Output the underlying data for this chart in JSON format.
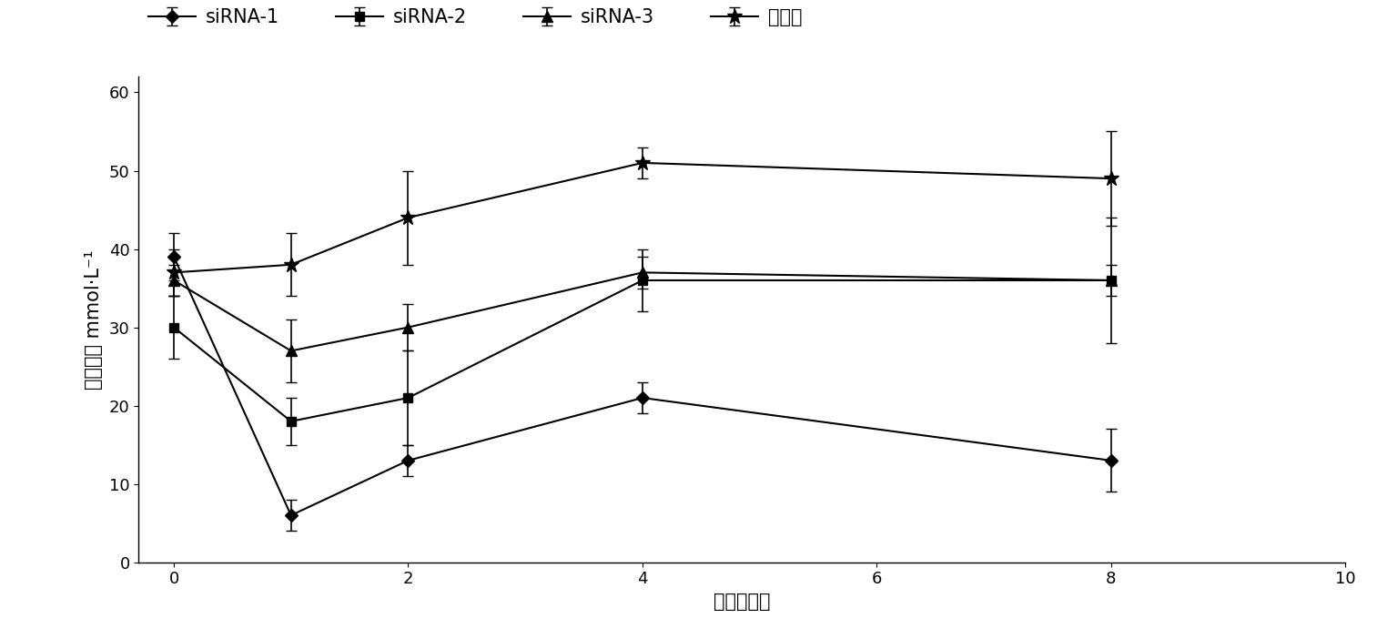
{
  "series": [
    {
      "label": "siRNA-1",
      "marker": "D",
      "x": [
        0,
        1,
        2,
        4,
        8
      ],
      "y": [
        39,
        6,
        13,
        21,
        13
      ],
      "yerr": [
        3,
        2,
        2,
        2,
        4
      ],
      "markersize": 7
    },
    {
      "label": "siRNA-2",
      "marker": "s",
      "x": [
        0,
        1,
        2,
        4,
        8
      ],
      "y": [
        30,
        18,
        21,
        36,
        36
      ],
      "yerr": [
        4,
        3,
        6,
        4,
        8
      ],
      "markersize": 7
    },
    {
      "label": "siRNA-3",
      "marker": "^",
      "x": [
        0,
        1,
        2,
        4,
        8
      ],
      "y": [
        36,
        27,
        30,
        37,
        36
      ],
      "yerr": [
        2,
        4,
        3,
        2,
        2
      ],
      "markersize": 8
    },
    {
      "label": "对照组",
      "marker": "*",
      "x": [
        0,
        1,
        2,
        4,
        8
      ],
      "y": [
        37,
        38,
        44,
        51,
        49
      ],
      "yerr": [
        3,
        4,
        6,
        2,
        6
      ],
      "markersize": 12
    }
  ],
  "xlabel": "给药后天数",
  "ylabel_line1": "血糖浓度 mmol·L",
  "ylabel_sup": "-1",
  "xlim": [
    -0.3,
    10
  ],
  "ylim": [
    0,
    62
  ],
  "xticks": [
    0,
    2,
    4,
    6,
    8,
    10
  ],
  "yticks": [
    0,
    10,
    20,
    30,
    40,
    50,
    60
  ],
  "line_color": "black",
  "line_width": 1.5,
  "capsize": 4,
  "font_size": 15,
  "label_font_size": 15,
  "tick_font_size": 13,
  "background_color": "#ffffff"
}
